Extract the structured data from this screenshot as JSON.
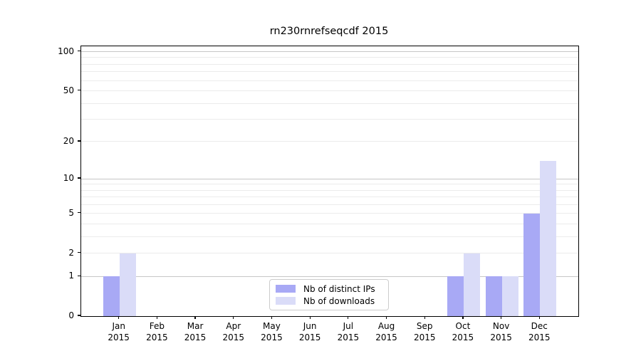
{
  "title": "rn230rnrefseqcdf 2015",
  "chart_data": {
    "type": "bar",
    "title": "rn230rnrefseqcdf 2015",
    "categories": [
      "Jan",
      "Feb",
      "Mar",
      "Apr",
      "May",
      "Jun",
      "Jul",
      "Aug",
      "Sep",
      "Oct",
      "Nov",
      "Dec"
    ],
    "category_year": "2015",
    "series": [
      {
        "name": "Nb of distinct IPs",
        "color": "#a8a9f5",
        "values": [
          1,
          0,
          0,
          0,
          0,
          0,
          0,
          0,
          0,
          1,
          1,
          5
        ]
      },
      {
        "name": "Nb of downloads",
        "color": "#dadcf8",
        "values": [
          2,
          0,
          0,
          0,
          0,
          0,
          0,
          0,
          0,
          2,
          1,
          14
        ]
      }
    ],
    "y_axis": {
      "scale": "log1p",
      "tick_labels": [
        0,
        1,
        2,
        5,
        10,
        20,
        50,
        100
      ],
      "major_gridlines": [
        1,
        10,
        100
      ],
      "minor_gridlines": [
        2,
        3,
        4,
        5,
        6,
        7,
        8,
        9,
        20,
        30,
        40,
        50,
        60,
        70,
        80,
        90
      ],
      "ylim": [
        0,
        110
      ]
    },
    "legend": {
      "position": "lower center"
    },
    "grid": true
  },
  "colors": {
    "spine": "#000000",
    "major_grid": "#c6c6c6",
    "minor_grid": "#ebebeb",
    "legend_border": "#cccccc",
    "background": "#ffffff"
  }
}
